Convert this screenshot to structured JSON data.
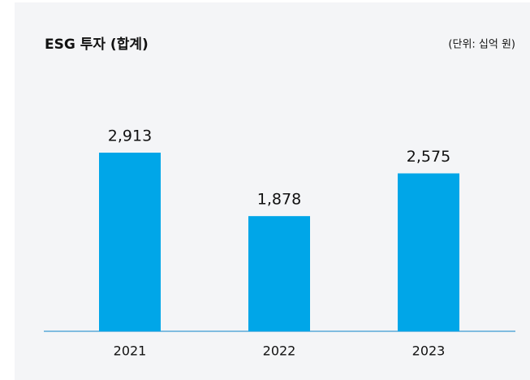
{
  "chart_data": {
    "type": "bar",
    "title": "ESG 투자 (합계)",
    "subtitle": "(단위: 십억 원)",
    "categories": [
      "2021",
      "2022",
      "2023"
    ],
    "values": [
      2913,
      1878,
      2575
    ],
    "value_labels": [
      "2,913",
      "1,878",
      "2,575"
    ],
    "color": "#00a6e8"
  }
}
